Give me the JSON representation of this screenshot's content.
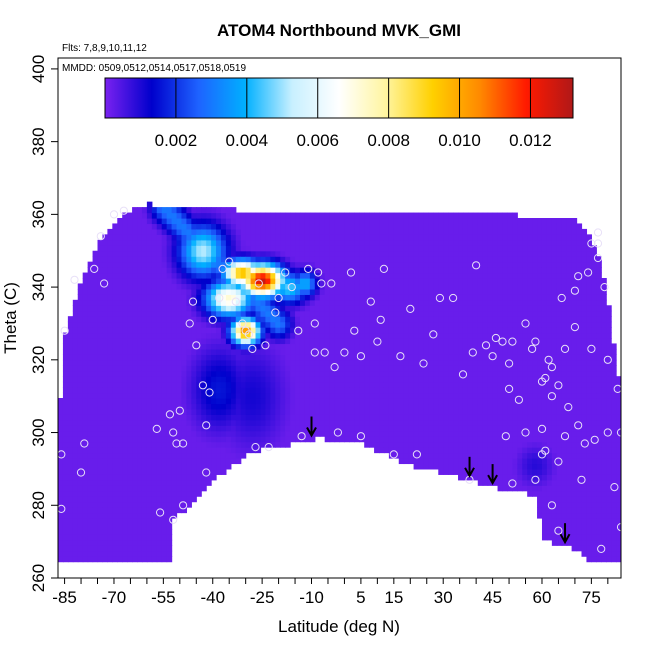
{
  "chart_data": {
    "type": "heatmap",
    "title": "ATOM4 Northbound MVK_GMI",
    "flights_label": "Flts: 7,8,9,10,11,12",
    "dates_label": "MMDD: 0509,0512,0514,0517,0518,0519",
    "xlabel": "Latitude (deg N)",
    "ylabel": "Theta (C)",
    "xlim": [
      -87,
      84
    ],
    "ylim": [
      260,
      403
    ],
    "x_ticks": [
      -85,
      -70,
      -55,
      -40,
      -25,
      -10,
      5,
      15,
      30,
      45,
      60,
      75
    ],
    "y_ticks": [
      260,
      280,
      300,
      320,
      340,
      360,
      380,
      400
    ],
    "colorbar": {
      "range": [
        0,
        0.0132
      ],
      "ticks": [
        "0.002",
        "0.004",
        "0.006",
        "0.008",
        "0.010",
        "0.012"
      ],
      "tick_values": [
        0.002,
        0.004,
        0.006,
        0.008,
        0.01,
        0.012
      ],
      "colors": [
        "#7a22f0",
        "#0000cc",
        "#1e63ff",
        "#00b0ff",
        "#c8f0ff",
        "#ffffff",
        "#fff5a0",
        "#ffd000",
        "#ff8a00",
        "#ff1a00",
        "#b01818"
      ]
    },
    "background_value": 0.0002,
    "arrow_latitudes": [
      -10,
      38,
      45,
      67
    ],
    "domain": {
      "top": [
        [
          -85,
          327
        ],
        [
          -80,
          342
        ],
        [
          -75,
          352
        ],
        [
          -68,
          360
        ],
        [
          -60,
          363
        ],
        [
          -52,
          362
        ],
        [
          -40,
          362
        ],
        [
          -30,
          361
        ],
        [
          -20,
          361
        ],
        [
          -5,
          361
        ],
        [
          10,
          361
        ],
        [
          30,
          361
        ],
        [
          50,
          360
        ],
        [
          60,
          359
        ],
        [
          70,
          359
        ],
        [
          75,
          353
        ],
        [
          78,
          347
        ],
        [
          80,
          337
        ],
        [
          82,
          323
        ],
        [
          84,
          312
        ],
        [
          84,
          264
        ]
      ],
      "bottom": [
        [
          84,
          264
        ],
        [
          75,
          264
        ],
        [
          70,
          268
        ],
        [
          62,
          270
        ],
        [
          60,
          272
        ],
        [
          58,
          283
        ],
        [
          50,
          284
        ],
        [
          45,
          285
        ],
        [
          38,
          287
        ],
        [
          20,
          291
        ],
        [
          5,
          297
        ],
        [
          -8,
          298.5
        ],
        [
          -20,
          296
        ],
        [
          -28,
          295
        ],
        [
          -35,
          290
        ],
        [
          -40,
          287
        ],
        [
          -45,
          281
        ],
        [
          -49,
          278
        ],
        [
          -53,
          276
        ],
        [
          -53,
          264
        ],
        [
          -87,
          264
        ],
        [
          -87,
          300
        ],
        [
          -86,
          312
        ],
        [
          -85,
          327
        ]
      ]
    },
    "plumes": [
      {
        "x": -25,
        "y": 342,
        "sx": 4.5,
        "sy": 3.0,
        "value": 0.0128
      },
      {
        "x": -31,
        "y": 344,
        "sx": 4,
        "sy": 2.5,
        "value": 0.0098
      },
      {
        "x": -35,
        "y": 337,
        "sx": 5,
        "sy": 3.5,
        "value": 0.0072
      },
      {
        "x": -30,
        "y": 328,
        "sx": 3.0,
        "sy": 2.5,
        "value": 0.0105
      },
      {
        "x": -43,
        "y": 350,
        "sx": 5,
        "sy": 5,
        "value": 0.0052
      },
      {
        "x": -17,
        "y": 340,
        "sx": 4,
        "sy": 3,
        "value": 0.0045
      },
      {
        "x": -12,
        "y": 341,
        "sx": 2.5,
        "sy": 2.5,
        "value": 0.004
      },
      {
        "x": -38,
        "y": 312,
        "sx": 6,
        "sy": 8,
        "value": 0.0016
      },
      {
        "x": -28,
        "y": 310,
        "sx": 7,
        "sy": 10,
        "value": 0.0011
      },
      {
        "x": 58,
        "y": 291,
        "sx": 4,
        "sy": 4,
        "value": 0.0009
      }
    ],
    "ridge": {
      "from": [
        -55,
        362
      ],
      "to": [
        -20,
        330
      ],
      "width": 2.8,
      "value": 0.003
    },
    "sample_points": [
      [
        -86,
        294
      ],
      [
        -86,
        279
      ],
      [
        -85,
        328
      ],
      [
        -82,
        342
      ],
      [
        -80,
        289
      ],
      [
        -79,
        297
      ],
      [
        -76,
        345
      ],
      [
        -74,
        354
      ],
      [
        -73,
        341
      ],
      [
        -70,
        360
      ],
      [
        -67,
        361
      ],
      [
        -57,
        301
      ],
      [
        -56,
        278
      ],
      [
        -52,
        276
      ],
      [
        -53,
        305
      ],
      [
        -52,
        300
      ],
      [
        -51,
        297
      ],
      [
        -50,
        306
      ],
      [
        -49,
        280
      ],
      [
        -49,
        297
      ],
      [
        -47,
        330
      ],
      [
        -46,
        336
      ],
      [
        -45,
        324
      ],
      [
        -43,
        313
      ],
      [
        -42,
        289
      ],
      [
        -42,
        302
      ],
      [
        -41,
        311
      ],
      [
        -40,
        331
      ],
      [
        -38,
        337
      ],
      [
        -37,
        345
      ],
      [
        -35,
        347
      ],
      [
        -33,
        336
      ],
      [
        -31,
        330
      ],
      [
        -30,
        328
      ],
      [
        -29,
        327
      ],
      [
        -28,
        323
      ],
      [
        -27,
        296
      ],
      [
        -26,
        341
      ],
      [
        -24,
        324
      ],
      [
        -23,
        296
      ],
      [
        -21,
        333
      ],
      [
        -20,
        337
      ],
      [
        -18,
        344
      ],
      [
        -16,
        340
      ],
      [
        -14,
        328
      ],
      [
        -13,
        299
      ],
      [
        -11,
        345
      ],
      [
        -9,
        330
      ],
      [
        -9,
        322
      ],
      [
        -8,
        344
      ],
      [
        -7,
        341
      ],
      [
        -6,
        322
      ],
      [
        -4,
        341
      ],
      [
        -3,
        318
      ],
      [
        -2,
        300
      ],
      [
        0,
        322
      ],
      [
        2,
        344
      ],
      [
        3,
        328
      ],
      [
        5,
        299
      ],
      [
        5,
        321
      ],
      [
        8,
        336
      ],
      [
        10,
        325
      ],
      [
        11,
        331
      ],
      [
        12,
        345
      ],
      [
        15,
        294
      ],
      [
        17,
        321
      ],
      [
        20,
        334
      ],
      [
        22,
        294
      ],
      [
        24,
        319
      ],
      [
        27,
        327
      ],
      [
        29,
        337
      ],
      [
        33,
        337
      ],
      [
        36,
        316
      ],
      [
        38,
        287
      ],
      [
        39,
        322
      ],
      [
        40,
        346
      ],
      [
        43,
        324
      ],
      [
        45,
        321
      ],
      [
        46,
        326
      ],
      [
        48,
        325
      ],
      [
        49,
        299
      ],
      [
        50,
        312
      ],
      [
        50,
        319
      ],
      [
        51,
        325
      ],
      [
        51,
        286
      ],
      [
        53,
        309
      ],
      [
        55,
        300
      ],
      [
        55,
        330
      ],
      [
        57,
        323
      ],
      [
        58,
        325
      ],
      [
        58,
        287
      ],
      [
        60,
        294
      ],
      [
        60,
        301
      ],
      [
        60,
        314
      ],
      [
        61,
        315
      ],
      [
        61,
        295
      ],
      [
        62,
        320
      ],
      [
        63,
        318
      ],
      [
        63,
        310
      ],
      [
        63,
        280
      ],
      [
        65,
        273
      ],
      [
        65,
        292
      ],
      [
        65,
        313
      ],
      [
        66,
        337
      ],
      [
        67,
        299
      ],
      [
        67,
        323
      ],
      [
        68,
        307
      ],
      [
        70,
        329
      ],
      [
        70,
        339
      ],
      [
        71,
        302
      ],
      [
        71,
        343
      ],
      [
        72,
        287
      ],
      [
        73,
        297
      ],
      [
        74,
        344
      ],
      [
        75,
        352
      ],
      [
        75,
        323
      ],
      [
        76,
        298
      ],
      [
        77,
        348
      ],
      [
        77,
        352
      ],
      [
        77,
        355
      ],
      [
        78,
        268
      ],
      [
        79,
        340
      ],
      [
        80,
        300
      ],
      [
        80,
        320
      ],
      [
        82,
        285
      ],
      [
        83,
        312
      ],
      [
        84,
        274
      ],
      [
        84,
        300
      ]
    ]
  }
}
